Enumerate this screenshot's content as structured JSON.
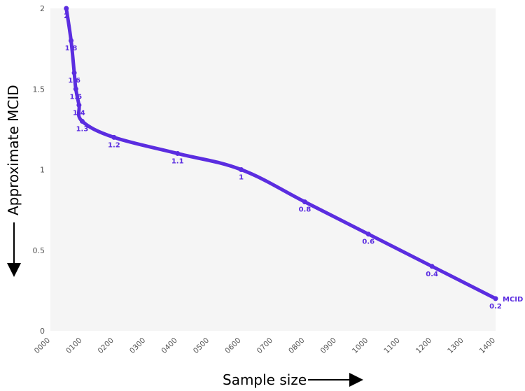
{
  "chart_data": {
    "type": "line",
    "title": "",
    "xlabel": "Sample size",
    "ylabel": "Approximate MCID",
    "xlim": [
      0,
      1400
    ],
    "ylim": [
      0,
      2
    ],
    "grid": false,
    "colors": {
      "series": "#5b2de0",
      "plot_bg": "#f5f5f5",
      "tick": "#555555"
    },
    "x_tick_labels": [
      "0000",
      "0100",
      "0200",
      "0300",
      "0400",
      "0500",
      "0600",
      "0700",
      "0800",
      "0900",
      "1000",
      "1100",
      "1200",
      "1300",
      "1400"
    ],
    "y_tick_labels": [
      "0",
      "0.5",
      "1",
      "1.5",
      "2"
    ],
    "series": [
      {
        "name": "MCID",
        "points": [
          {
            "x": 50,
            "y": 2.0,
            "label": "2"
          },
          {
            "x": 65,
            "y": 1.8,
            "label": "1.8"
          },
          {
            "x": 75,
            "y": 1.6,
            "label": "1.6"
          },
          {
            "x": 80,
            "y": 1.5,
            "label": "1.5"
          },
          {
            "x": 90,
            "y": 1.4,
            "label": "1.4"
          },
          {
            "x": 100,
            "y": 1.3,
            "label": "1.3"
          },
          {
            "x": 200,
            "y": 1.2,
            "label": "1.2"
          },
          {
            "x": 400,
            "y": 1.1,
            "label": "1.1"
          },
          {
            "x": 600,
            "y": 1.0,
            "label": "1"
          },
          {
            "x": 800,
            "y": 0.8,
            "label": "0.8"
          },
          {
            "x": 1000,
            "y": 0.6,
            "label": "0.6"
          },
          {
            "x": 1200,
            "y": 0.4,
            "label": "0.4"
          },
          {
            "x": 1400,
            "y": 0.2,
            "label": "0.2"
          }
        ]
      }
    ]
  }
}
